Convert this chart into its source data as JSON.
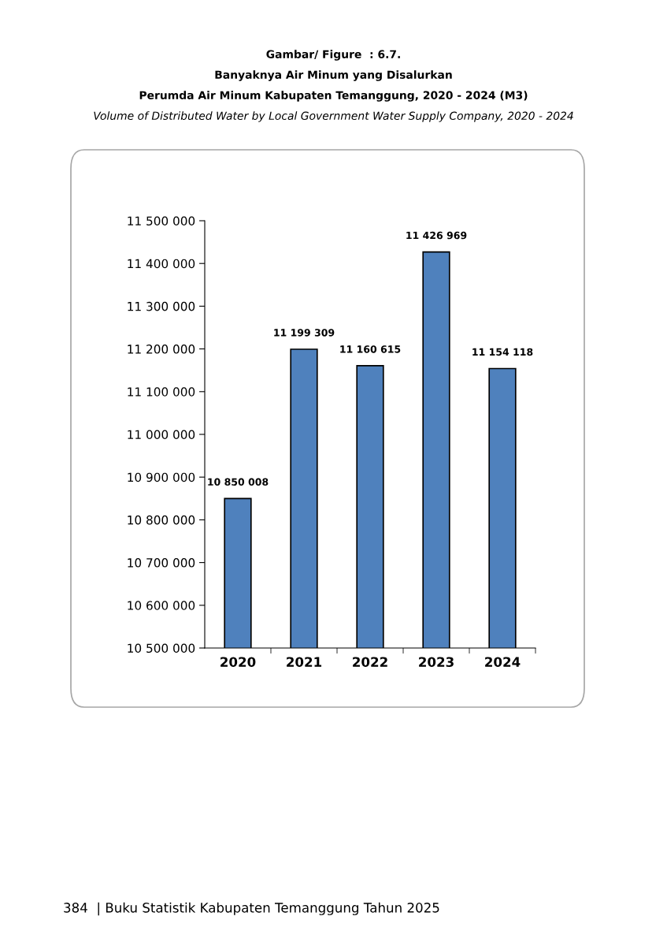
{
  "chart_data": {
    "type": "bar",
    "title": "Gambar/ Figure  : 6.7.\nBanyaknya Air Minum yang Disalurkan\nPerumda Air Minum Kabupaten Temanggung, 2020 - 2024 (M3)",
    "subtitle": "Volume of Distributed Water by Local Government Water Supply Company, 2020 - 2024",
    "categories": [
      "2020",
      "2021",
      "2022",
      "2023",
      "2024"
    ],
    "values": [
      10850008,
      11199309,
      11160615,
      11426969,
      11154118
    ],
    "value_labels": [
      "10 850 008",
      "11 199 309",
      "11 160 615",
      "11 426 969",
      "11 154 118"
    ],
    "color": "#4f81bd",
    "ylim": [
      10500000,
      11500000
    ],
    "yticks": [
      {
        "value": 10500000,
        "label": "10 500 000"
      },
      {
        "value": 10600000,
        "label": "10 600 000"
      },
      {
        "value": 10700000,
        "label": "10 700 000"
      },
      {
        "value": 10800000,
        "label": "10 800 000"
      },
      {
        "value": 10900000,
        "label": "10 900 000"
      },
      {
        "value": 11000000,
        "label": "11 000 000"
      },
      {
        "value": 11100000,
        "label": "11 100 000"
      },
      {
        "value": 11200000,
        "label": "11 200 000"
      },
      {
        "value": 11300000,
        "label": "11 300 000"
      },
      {
        "value": 11400000,
        "label": "11 400 000"
      },
      {
        "value": 11500000,
        "label": "11 500 000"
      }
    ],
    "grid": false,
    "annotations": [
      "384  | Buku Statistik Kabupaten Temanggung Tahun 2025"
    ]
  }
}
